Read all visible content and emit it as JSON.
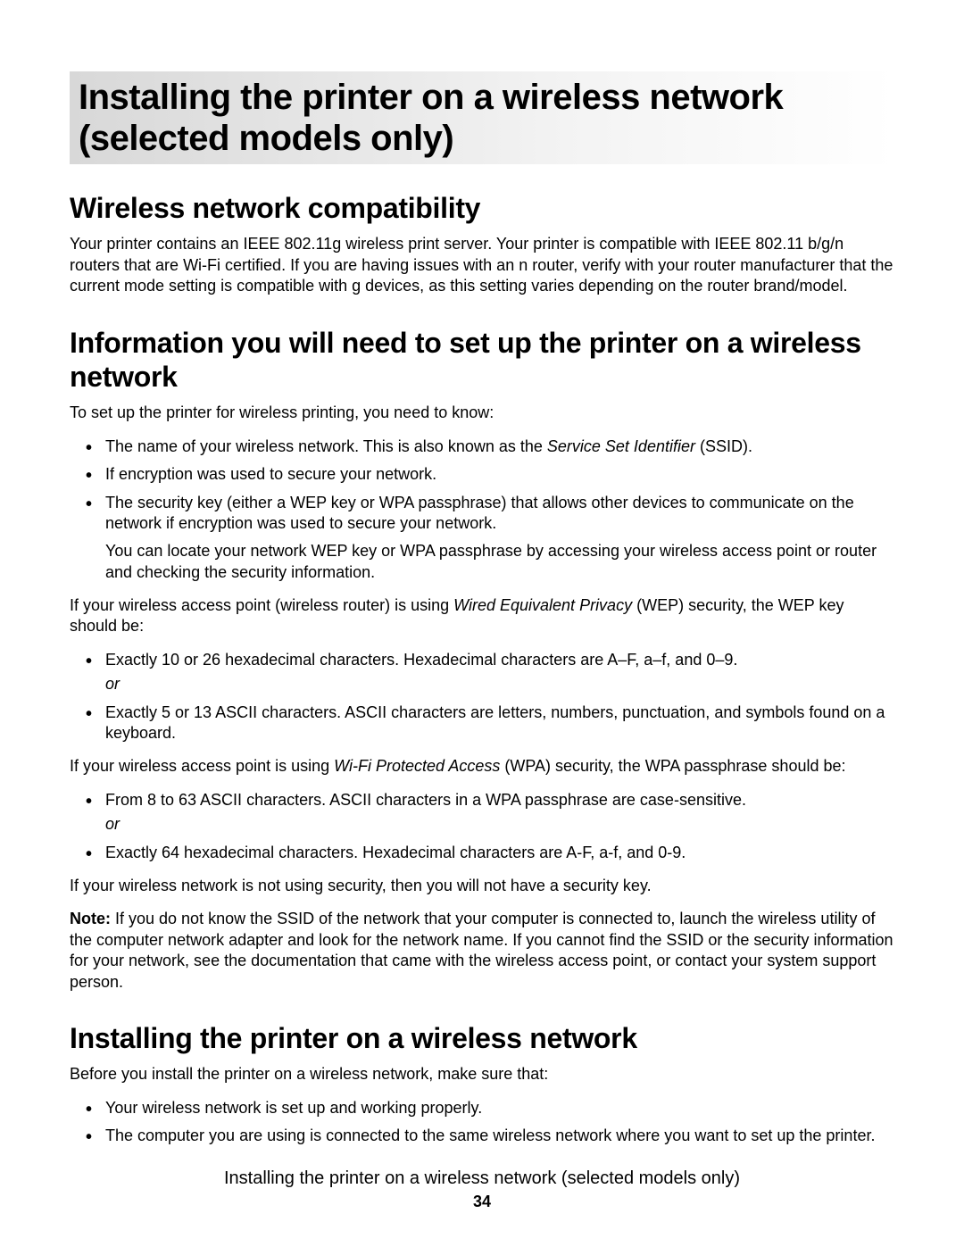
{
  "title": "Installing the printer on a wireless network (selected models only)",
  "s1": {
    "heading": "Wireless network compatibility",
    "p1": "Your printer contains an IEEE 802.11g wireless print server. Your printer is compatible with IEEE 802.11 b/g/n routers that are Wi-Fi certified. If you are having issues with an n router, verify with your router manufacturer that the current mode setting is compatible with g devices, as this setting varies depending on the router brand/model."
  },
  "s2": {
    "heading": "Information you will need to set up the printer on a wireless network",
    "intro": "To set up the printer for wireless printing, you need to know:",
    "li1a": "The name of your wireless network. This is also known as the ",
    "li1b": "Service Set Identifier",
    "li1c": " (SSID).",
    "li2": "If encryption was used to secure your network.",
    "li3": "The security key (either a WEP key or WPA passphrase) that allows other devices to communicate on the network if encryption was used to secure your network.",
    "li3sub": "You can locate your network WEP key or WPA passphrase by accessing your wireless access point or router and checking the security information.",
    "wep_intro_a": "If your wireless access point (wireless router) is using ",
    "wep_intro_b": "Wired Equivalent Privacy",
    "wep_intro_c": " (WEP) security, the WEP key should be:",
    "wep_li1": "Exactly 10 or 26 hexadecimal characters. Hexadecimal characters are A–F, a–f, and 0–9.",
    "or1": "or",
    "wep_li2": "Exactly 5 or 13 ASCII characters. ASCII characters are letters, numbers, punctuation, and symbols found on a keyboard.",
    "wpa_intro_a": "If your wireless access point is using ",
    "wpa_intro_b": "Wi-Fi Protected Access",
    "wpa_intro_c": " (WPA) security, the WPA passphrase should be:",
    "wpa_li1": "From 8 to 63 ASCII characters. ASCII characters in a WPA passphrase are case-sensitive.",
    "or2": "or",
    "wpa_li2": "Exactly 64 hexadecimal characters. Hexadecimal characters are A-F, a-f, and 0-9.",
    "nosec": "If your wireless network is not using security, then you will not have a security key.",
    "note_label": "Note:",
    "note_body": " If you do not know the SSID of the network that your computer is connected to, launch the wireless utility of the computer network adapter and look for the network name. If you cannot find the SSID or the security information for your network, see the documentation that came with the wireless access point, or contact your system support person."
  },
  "s3": {
    "heading": "Installing the printer on a wireless network",
    "intro": "Before you install the printer on a wireless network, make sure that:",
    "li1": "Your wireless network is set up and working properly.",
    "li2": "The computer you are using is connected to the same wireless network where you want to set up the printer."
  },
  "footer": {
    "title": "Installing the printer on a wireless network (selected models only)",
    "page": "34"
  }
}
